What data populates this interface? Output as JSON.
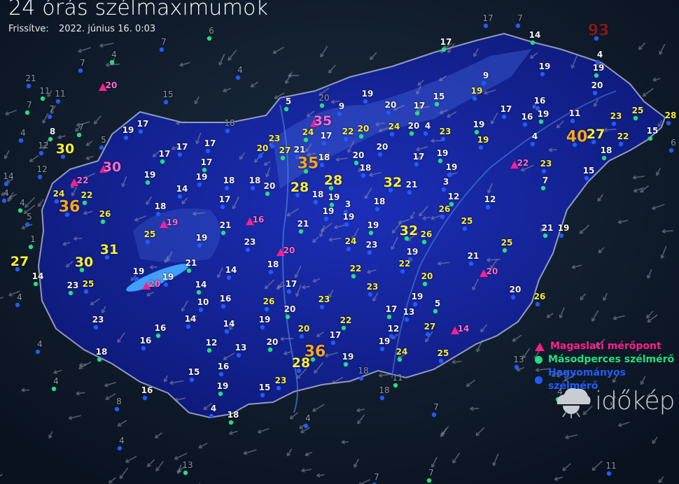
{
  "header": {
    "title": "24 órás szélmaximumok",
    "updated_label": "Frissítve:",
    "updated_value": "2022. június 16. 0:03"
  },
  "legend": [
    {
      "label": "Magaslati mérőpont",
      "color": "#ff1f8e",
      "icon": "triangle-icon"
    },
    {
      "label": "Másodperces szélmérő",
      "color": "#22e07a",
      "icon": "circle-icon"
    },
    {
      "label": "Hagyományos szélmérő",
      "color": "#1f5cff",
      "icon": "circle-icon"
    }
  ],
  "logo": {
    "text": "időkép"
  },
  "colors": {
    "country_fill": "#1a2aa8",
    "background": "#0b1526",
    "label_normal": "#f7f03a",
    "label_strong": "#f5a623",
    "label_mountain": "#ff6ad5",
    "label_outside": "#8c96a0"
  },
  "stations": [
    {
      "v": "4",
      "k": "g"
    },
    {
      "v": "7",
      "k": "g"
    },
    {
      "v": "7",
      "k": "g"
    },
    {
      "v": "6",
      "k": "g"
    },
    {
      "v": "4",
      "k": "g"
    },
    {
      "v": "15",
      "k": "g"
    },
    {
      "v": "11",
      "k": "g"
    },
    {
      "v": "11",
      "k": "g"
    },
    {
      "v": "21",
      "k": "g"
    },
    {
      "v": "7",
      "k": "g"
    },
    {
      "v": "7",
      "k": "g"
    },
    {
      "v": "4",
      "k": "g"
    },
    {
      "v": "8",
      "k": "w"
    },
    {
      "v": "12",
      "k": "g"
    },
    {
      "v": "5",
      "k": "g"
    },
    {
      "v": "7",
      "k": "g"
    },
    {
      "v": "14",
      "k": "g"
    },
    {
      "v": "4",
      "k": "g"
    },
    {
      "v": "4",
      "k": "g"
    },
    {
      "v": "12",
      "k": "g"
    },
    {
      "v": "5",
      "k": "g"
    },
    {
      "v": "1",
      "k": "g"
    },
    {
      "v": "4",
      "k": "g"
    },
    {
      "v": "4",
      "k": "g"
    },
    {
      "v": "4",
      "k": "g"
    },
    {
      "v": "8",
      "k": "g"
    },
    {
      "v": "4",
      "k": "g"
    },
    {
      "v": "13",
      "k": "g"
    },
    {
      "v": "4",
      "k": "g"
    },
    {
      "v": "7",
      "k": "g"
    },
    {
      "v": "7",
      "k": "g"
    },
    {
      "v": "7",
      "k": "g"
    },
    {
      "v": "11",
      "k": "g"
    },
    {
      "v": "4",
      "k": "g"
    },
    {
      "v": "17",
      "k": "g"
    },
    {
      "v": "7",
      "k": "g"
    },
    {
      "v": "14",
      "k": "w"
    },
    {
      "v": "93",
      "k": "r"
    },
    {
      "v": "4",
      "k": "w"
    },
    {
      "v": "19",
      "k": "w"
    },
    {
      "v": "19",
      "k": "w"
    },
    {
      "v": "20",
      "k": "w"
    },
    {
      "v": "17",
      "k": "w"
    },
    {
      "v": "9",
      "k": "w"
    },
    {
      "v": "18",
      "k": "g"
    },
    {
      "v": "20",
      "k": "g"
    },
    {
      "v": "18",
      "k": "g"
    },
    {
      "v": "18",
      "k": "g"
    },
    {
      "v": "11",
      "k": "g"
    },
    {
      "v": "13",
      "k": "g"
    },
    {
      "v": "6",
      "k": "g"
    },
    {
      "v": "15",
      "k": "w"
    },
    {
      "v": "19",
      "k": "w"
    },
    {
      "v": "17",
      "k": "w"
    },
    {
      "v": "17",
      "k": "w"
    },
    {
      "v": "17",
      "k": "w"
    },
    {
      "v": "17",
      "k": "w"
    },
    {
      "v": "19",
      "k": "w"
    },
    {
      "v": "14",
      "k": "w"
    },
    {
      "v": "19",
      "k": "w"
    },
    {
      "v": "17",
      "k": "w"
    },
    {
      "v": "18",
      "k": "w"
    },
    {
      "v": "18",
      "k": "w"
    },
    {
      "v": "20",
      "k": "w"
    },
    {
      "v": "17",
      "k": "w"
    },
    {
      "v": "18",
      "k": "w"
    },
    {
      "v": "26",
      "k": "y"
    },
    {
      "v": "25",
      "k": "y"
    },
    {
      "v": "19",
      "k": "w"
    },
    {
      "v": "21",
      "k": "w"
    },
    {
      "v": "23",
      "k": "w"
    },
    {
      "v": "14",
      "k": "w"
    },
    {
      "v": "21",
      "k": "w"
    },
    {
      "v": "19",
      "k": "w"
    },
    {
      "v": "19",
      "k": "w"
    },
    {
      "v": "14",
      "k": "w"
    },
    {
      "v": "16",
      "k": "w"
    },
    {
      "v": "10",
      "k": "w"
    },
    {
      "v": "23",
      "k": "w"
    },
    {
      "v": "25",
      "k": "y"
    },
    {
      "v": "23",
      "k": "w"
    },
    {
      "v": "16",
      "k": "w"
    },
    {
      "v": "14",
      "k": "w"
    },
    {
      "v": "14",
      "k": "w"
    },
    {
      "v": "12",
      "k": "w"
    },
    {
      "v": "13",
      "k": "w"
    },
    {
      "v": "16",
      "k": "w"
    },
    {
      "v": "18",
      "k": "w"
    },
    {
      "v": "15",
      "k": "w"
    },
    {
      "v": "16",
      "k": "w"
    },
    {
      "v": "19",
      "k": "w"
    },
    {
      "v": "16",
      "k": "w"
    },
    {
      "v": "4",
      "k": "w"
    },
    {
      "v": "18",
      "k": "w"
    },
    {
      "v": "15",
      "k": "w"
    },
    {
      "v": "23",
      "k": "y"
    },
    {
      "v": "20",
      "k": "w"
    },
    {
      "v": "19",
      "k": "w"
    },
    {
      "v": "26",
      "k": "y"
    },
    {
      "v": "20",
      "k": "w"
    },
    {
      "v": "17",
      "k": "w"
    },
    {
      "v": "18",
      "k": "w"
    },
    {
      "v": "21",
      "k": "w"
    },
    {
      "v": "24",
      "k": "y"
    },
    {
      "v": "23",
      "k": "w"
    },
    {
      "v": "22",
      "k": "y"
    },
    {
      "v": "23",
      "k": "y"
    },
    {
      "v": "23",
      "k": "y"
    },
    {
      "v": "22",
      "k": "y"
    },
    {
      "v": "17",
      "k": "w"
    },
    {
      "v": "20",
      "k": "y"
    },
    {
      "v": "19",
      "k": "w"
    },
    {
      "v": "19",
      "k": "w"
    },
    {
      "v": "12",
      "k": "w"
    },
    {
      "v": "17",
      "k": "w"
    },
    {
      "v": "13",
      "k": "w"
    },
    {
      "v": "19",
      "k": "w"
    },
    {
      "v": "5",
      "k": "w"
    },
    {
      "v": "27",
      "k": "y"
    },
    {
      "v": "25",
      "k": "y"
    },
    {
      "v": "24",
      "k": "y"
    },
    {
      "v": "22",
      "k": "y"
    },
    {
      "v": "19",
      "k": "w"
    },
    {
      "v": "26",
      "k": "y"
    },
    {
      "v": "25",
      "k": "y"
    },
    {
      "v": "21",
      "k": "w"
    },
    {
      "v": "25",
      "k": "y"
    },
    {
      "v": "20",
      "k": "w"
    },
    {
      "v": "26",
      "k": "y"
    },
    {
      "v": "21",
      "k": "w"
    },
    {
      "v": "19",
      "k": "w"
    },
    {
      "v": "18",
      "k": "w"
    },
    {
      "v": "19",
      "k": "w"
    },
    {
      "v": "19",
      "k": "w"
    },
    {
      "v": "19",
      "k": "w"
    },
    {
      "v": "19",
      "k": "w"
    },
    {
      "v": "21",
      "k": "w"
    },
    {
      "v": "3",
      "k": "w"
    },
    {
      "v": "12",
      "k": "w"
    },
    {
      "v": "26",
      "k": "y"
    },
    {
      "v": "19",
      "k": "w"
    },
    {
      "v": "19",
      "k": "w"
    },
    {
      "v": "17",
      "k": "w"
    },
    {
      "v": "18",
      "k": "w"
    },
    {
      "v": "20",
      "k": "w"
    },
    {
      "v": "20",
      "k": "w"
    },
    {
      "v": "24",
      "k": "y"
    },
    {
      "v": "20",
      "k": "w"
    },
    {
      "v": "4",
      "k": "w"
    },
    {
      "v": "23",
      "k": "y"
    },
    {
      "v": "19",
      "k": "w"
    },
    {
      "v": "17",
      "k": "w"
    },
    {
      "v": "16",
      "k": "w"
    },
    {
      "v": "19",
      "k": "w"
    },
    {
      "v": "11",
      "k": "w"
    },
    {
      "v": "23",
      "k": "y"
    },
    {
      "v": "25",
      "k": "y"
    },
    {
      "v": "28",
      "k": "y"
    },
    {
      "v": "22",
      "k": "y"
    },
    {
      "v": "18",
      "k": "w"
    },
    {
      "v": "15",
      "k": "w"
    },
    {
      "v": "23",
      "k": "y"
    },
    {
      "v": "7",
      "k": "w"
    },
    {
      "v": "4",
      "k": "w"
    },
    {
      "v": "16",
      "k": "w"
    },
    {
      "v": "17",
      "k": "w"
    },
    {
      "v": "19",
      "k": "y"
    },
    {
      "v": "12",
      "k": "w"
    },
    {
      "v": "15",
      "k": "w"
    },
    {
      "v": "19",
      "k": "y"
    },
    {
      "v": "19",
      "k": "w"
    },
    {
      "v": "20",
      "k": "y"
    },
    {
      "v": "22",
      "k": "y"
    },
    {
      "v": "17",
      "k": "w"
    },
    {
      "v": "24",
      "k": "y"
    },
    {
      "v": "20",
      "k": "y"
    },
    {
      "v": "23",
      "k": "y"
    },
    {
      "v": "27",
      "k": "y"
    },
    {
      "v": "21",
      "k": "w"
    },
    {
      "v": "18",
      "k": "w"
    },
    {
      "v": "5",
      "k": "w"
    },
    {
      "v": "9",
      "k": "w"
    },
    {
      "v": "18",
      "k": "w"
    },
    {
      "v": "28",
      "k": "Y"
    },
    {
      "v": "3",
      "k": "w"
    },
    {
      "v": "24",
      "k": "y"
    },
    {
      "v": "22",
      "k": "y"
    },
    {
      "v": "30",
      "k": "Y"
    },
    {
      "v": "30",
      "k": "P"
    },
    {
      "v": "22",
      "k": "p"
    },
    {
      "v": "36",
      "k": "o"
    },
    {
      "v": "31",
      "k": "Y"
    },
    {
      "v": "30",
      "k": "Y"
    },
    {
      "v": "27",
      "k": "Y"
    },
    {
      "v": "35",
      "k": "P"
    },
    {
      "v": "35",
      "k": "o"
    },
    {
      "v": "28",
      "k": "Y"
    },
    {
      "v": "32",
      "k": "Y"
    },
    {
      "v": "32",
      "k": "Y"
    },
    {
      "v": "40",
      "k": "o"
    },
    {
      "v": "27",
      "k": "Y"
    },
    {
      "v": "36",
      "k": "o"
    },
    {
      "v": "28",
      "k": "Y"
    },
    {
      "v": "22",
      "k": "p"
    },
    {
      "v": "14",
      "k": "p"
    },
    {
      "v": "20",
      "k": "p"
    },
    {
      "v": "19",
      "k": "p"
    },
    {
      "v": "16",
      "k": "p"
    },
    {
      "v": "20",
      "k": "p"
    },
    {
      "v": "20",
      "k": "p"
    },
    {
      "v": "14",
      "k": "w"
    },
    {
      "v": "20",
      "k": "p"
    },
    {
      "v": "20",
      "k": "w"
    },
    {
      "v": "20",
      "k": "y"
    }
  ]
}
